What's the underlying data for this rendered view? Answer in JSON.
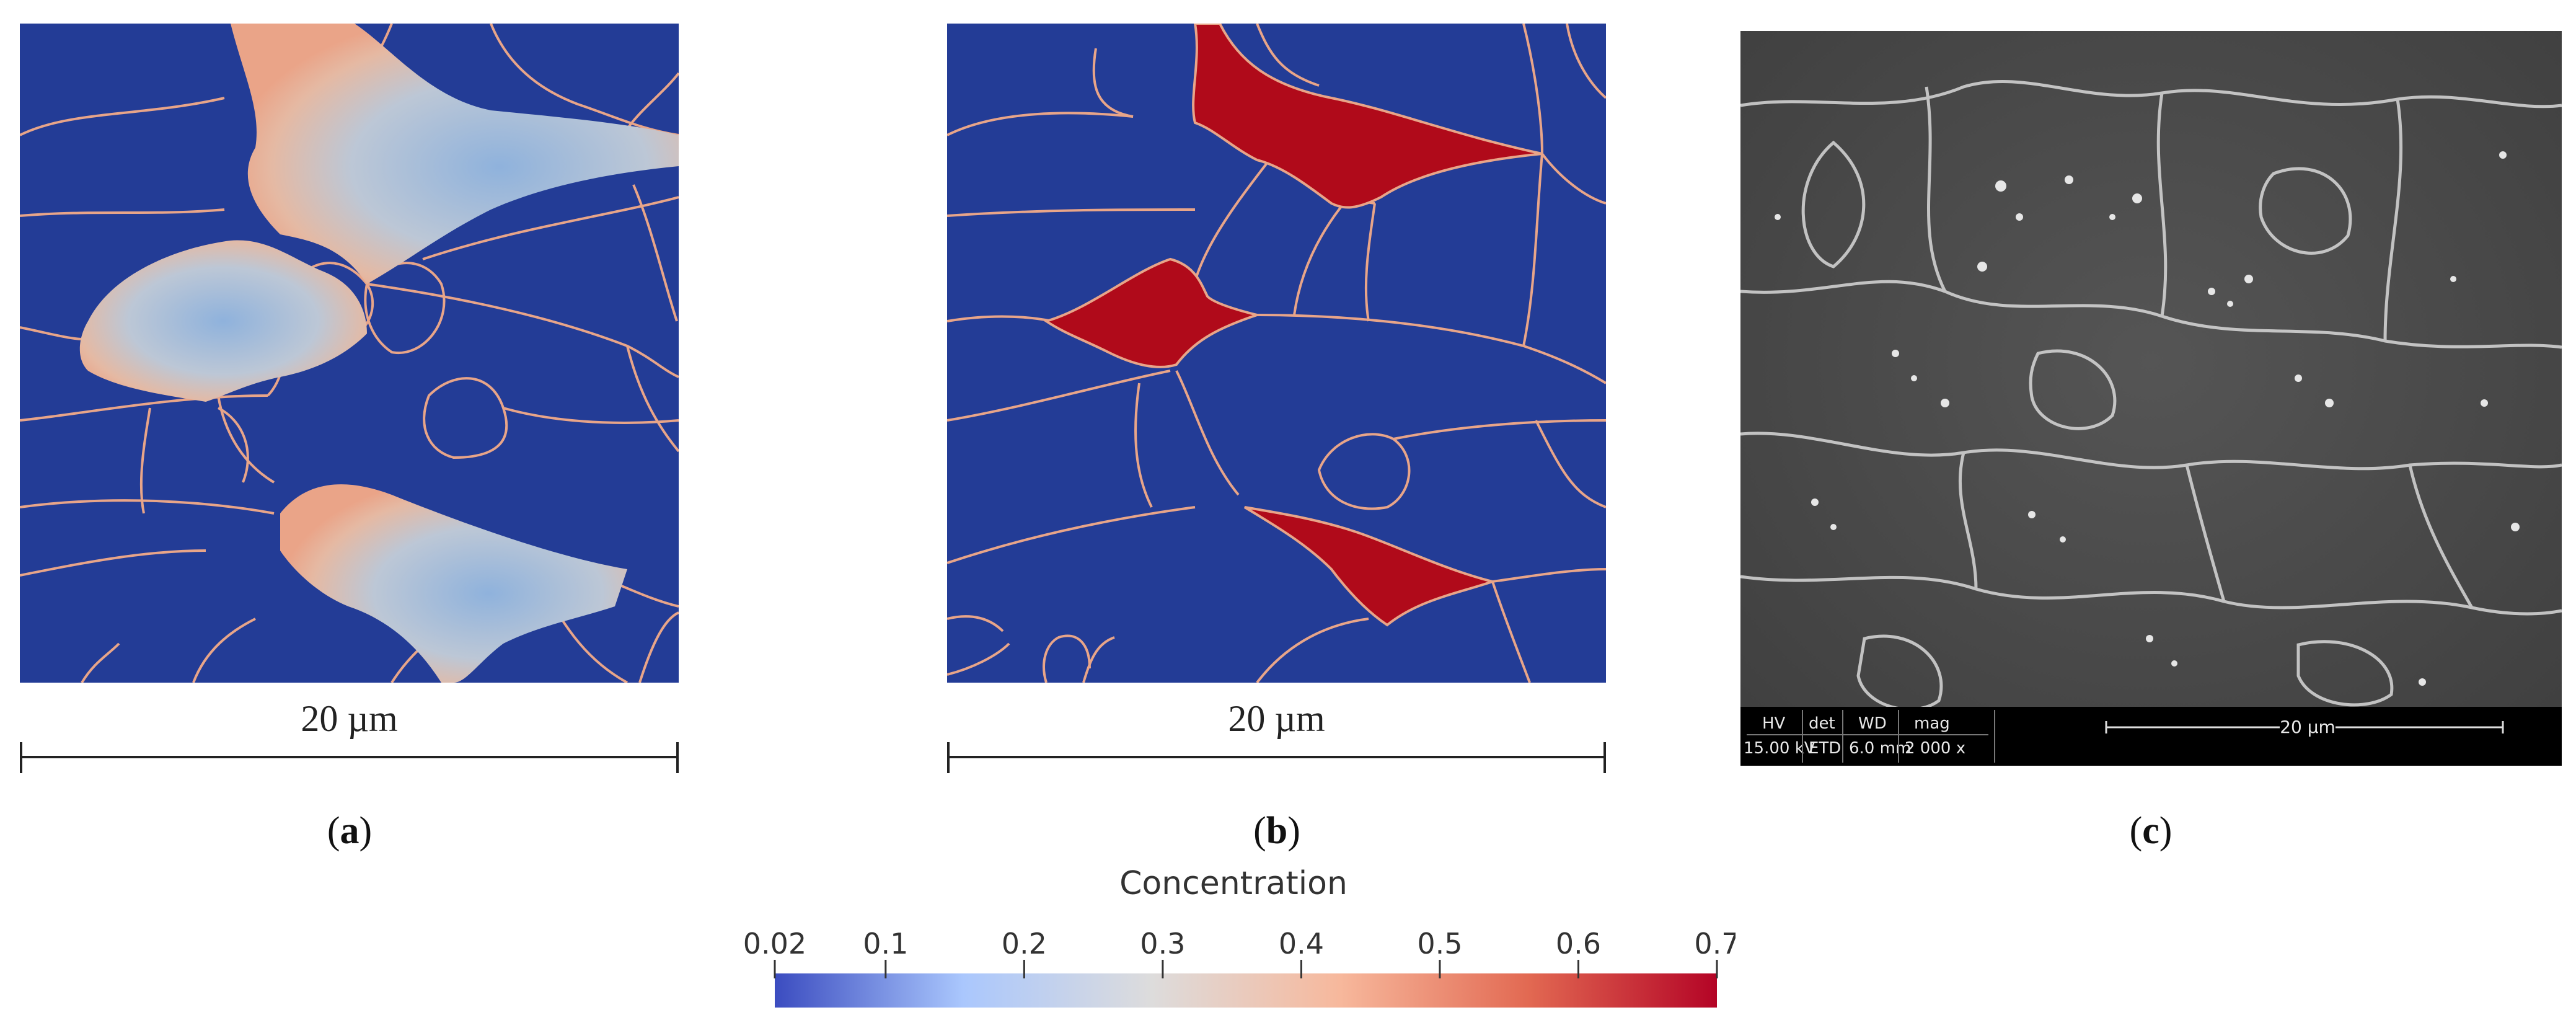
{
  "figure": {
    "panels": [
      {
        "id": "a",
        "label_prefix": "(",
        "label": "a",
        "label_suffix": ")",
        "scale_text": "20 µm"
      },
      {
        "id": "b",
        "label_prefix": "(",
        "label": "b",
        "label_suffix": ")",
        "scale_text": "20 µm"
      },
      {
        "id": "c",
        "label_prefix": "(",
        "label": "c",
        "label_suffix": ")"
      }
    ],
    "sem_info": {
      "headers": [
        "HV",
        "det",
        "WD",
        "mag"
      ],
      "values": [
        "15.00 kV",
        "ETD",
        "6.0 mm",
        "2 000 x"
      ],
      "scale_text": "20 µm"
    },
    "colorbar": {
      "title": "Concentration",
      "ticks": [
        "0.02",
        "0.1",
        "0.2",
        "0.3",
        "0.4",
        "0.5",
        "0.6",
        "0.7"
      ],
      "tick_values": [
        0.02,
        0.1,
        0.2,
        0.3,
        0.4,
        0.5,
        0.6,
        0.7
      ],
      "min": 0.02,
      "max": 0.7,
      "colors": [
        "#3b4cc0",
        "#aac7fd",
        "#dddcdc",
        "#f7b89c",
        "#e26952",
        "#b40426"
      ]
    },
    "colors": {
      "matrix": "#233c96",
      "boundary": "#e8a589",
      "high": "#b00a1a",
      "center": "#8fb2dc"
    }
  }
}
